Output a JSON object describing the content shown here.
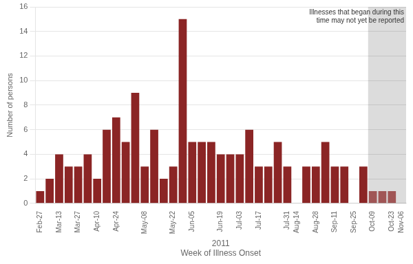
{
  "chart_data": {
    "type": "bar",
    "categories": [
      "Feb-27",
      null,
      "Mar-13",
      null,
      "Mar-27",
      null,
      "Apr-10",
      null,
      "Apr-24",
      null,
      null,
      "May-08",
      null,
      null,
      "May-22",
      null,
      "Jun-05",
      null,
      null,
      "Jun-19",
      null,
      "Jul-03",
      null,
      "Jul-17",
      null,
      null,
      "Jul-31",
      "Aug-14",
      null,
      "Aug-28",
      null,
      "Sep-11",
      null,
      "Sep-25",
      null,
      "Oct-09",
      null,
      "Oct-23",
      "Nov-06"
    ],
    "values": [
      1,
      2,
      4,
      3,
      3,
      4,
      2,
      6,
      7,
      5,
      9,
      3,
      6,
      2,
      3,
      15,
      5,
      5,
      5,
      4,
      4,
      4,
      6,
      3,
      3,
      5,
      3,
      0,
      3,
      3,
      5,
      3,
      3,
      0,
      3,
      1,
      1,
      1,
      0
    ],
    "colors": [
      "#8B2525",
      "#8B2525",
      "#8B2525",
      "#8B2525",
      "#8B2525",
      "#8B2525",
      "#8B2525",
      "#8B2525",
      "#8B2525",
      "#8B2525",
      "#8B2525",
      "#8B2525",
      "#8B2525",
      "#8B2525",
      "#8B2525",
      "#8B2525",
      "#8B2525",
      "#8B2525",
      "#8B2525",
      "#8B2525",
      "#8B2525",
      "#8B2525",
      "#8B2525",
      "#8B2525",
      "#8B2525",
      "#8B2525",
      "#8B2525",
      "#8B2525",
      "#8B2525",
      "#8B2525",
      "#8B2525",
      "#8B2525",
      "#8B2525",
      "#8B2525",
      "#8B2525",
      "#A05555",
      "#A05555",
      "#A05555",
      "#A05555"
    ],
    "ylabel": "Number of persons",
    "xlabel": "2011\nWeek of Illness Onset",
    "ylim": [
      0,
      16
    ],
    "yticks": [
      0,
      2,
      4,
      6,
      8,
      10,
      12,
      14,
      16
    ],
    "grid": true,
    "annotations": [
      {
        "text": "Illnesses that began during this\ntime may not yet be reported",
        "x": "Oct-09",
        "color": "#DCDCDC"
      }
    ]
  }
}
